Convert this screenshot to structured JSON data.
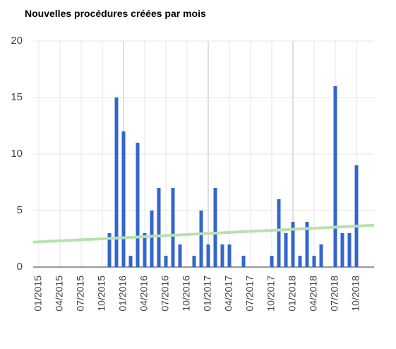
{
  "chart_data": {
    "type": "bar",
    "title": "Nouvelles procédures créées par mois",
    "categories": [
      "01/2015",
      null,
      null,
      "04/2015",
      null,
      null,
      "07/2015",
      null,
      null,
      "10/2015",
      null,
      null,
      "01/2016",
      null,
      null,
      "04/2016",
      null,
      null,
      "07/2016",
      null,
      null,
      "10/2016",
      null,
      null,
      "01/2017",
      null,
      null,
      "04/2017",
      null,
      null,
      "07/2017",
      null,
      null,
      "10/2017",
      null,
      null,
      "01/2018",
      null,
      null,
      "04/2018",
      null,
      null,
      "07/2018",
      null,
      null,
      "10/2018",
      null,
      null
    ],
    "values": [
      0,
      0,
      0,
      0,
      0,
      0,
      0,
      0,
      0,
      0,
      3,
      15,
      12,
      1,
      11,
      3,
      5,
      7,
      1,
      7,
      2,
      0,
      1,
      5,
      2,
      7,
      2,
      2,
      0,
      1,
      0,
      0,
      0,
      1,
      6,
      3,
      4,
      1,
      4,
      1,
      2,
      0,
      16,
      3,
      3,
      9,
      0,
      0
    ],
    "color": "#3366cc",
    "ylim": [
      0,
      20
    ],
    "yticks": [
      0,
      5,
      10,
      15,
      20
    ],
    "grid": true,
    "trendline": {
      "color": "#b7e1b0",
      "start": 2.2,
      "end": 3.7
    }
  }
}
